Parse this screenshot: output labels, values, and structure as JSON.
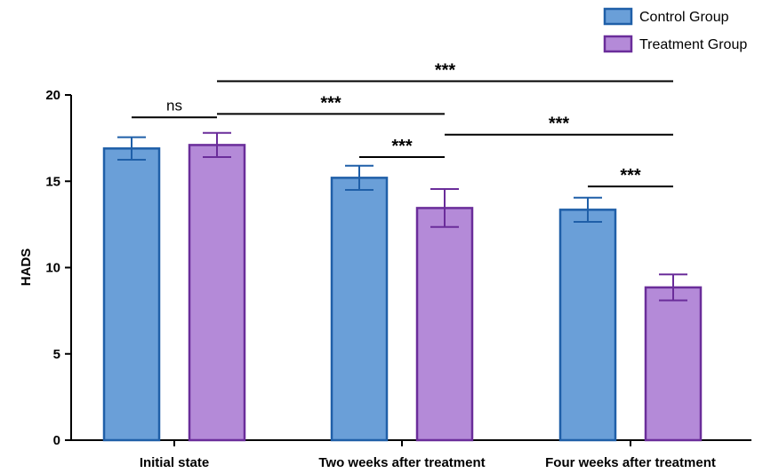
{
  "chart_data": {
    "type": "bar",
    "title": "",
    "xlabel": "",
    "ylabel": "HADS",
    "ylim": [
      0,
      20
    ],
    "yticks": [
      0,
      5,
      10,
      15,
      20
    ],
    "categories": [
      "Initial state",
      "Two weeks after treatment",
      "Four weeks after treatment"
    ],
    "series": [
      {
        "name": "Control Group",
        "values": [
          16.9,
          15.2,
          13.35
        ],
        "errors": [
          0.65,
          0.7,
          0.7
        ],
        "fill": "#6a9fd8",
        "stroke": "#1f5fa8"
      },
      {
        "name": "Treatment Group",
        "values": [
          17.1,
          13.45,
          8.85
        ],
        "errors": [
          0.7,
          1.1,
          0.75
        ],
        "fill": "#b48ad8",
        "stroke": "#6a2d9a"
      }
    ],
    "legend": {
      "placement": "top-right"
    },
    "significance": [
      {
        "label": "ns",
        "from": {
          "cat": 0,
          "series": 0
        },
        "to": {
          "cat": 0,
          "series": 1
        },
        "y": 18.7
      },
      {
        "label": "***",
        "from": {
          "cat": 0,
          "series": 1
        },
        "to": {
          "cat": 1,
          "series": 1
        },
        "y": 18.9
      },
      {
        "label": "***",
        "from": {
          "cat": 0,
          "series": 1
        },
        "to": {
          "cat": 2,
          "series": 1
        },
        "y": 20.8
      },
      {
        "label": "***",
        "from": {
          "cat": 1,
          "series": 0
        },
        "to": {
          "cat": 1,
          "series": 1
        },
        "y": 16.4
      },
      {
        "label": "***",
        "from": {
          "cat": 1,
          "series": 1
        },
        "to": {
          "cat": 2,
          "series": 1
        },
        "y": 17.7
      },
      {
        "label": "***",
        "from": {
          "cat": 2,
          "series": 0
        },
        "to": {
          "cat": 2,
          "series": 1
        },
        "y": 14.7
      }
    ]
  }
}
